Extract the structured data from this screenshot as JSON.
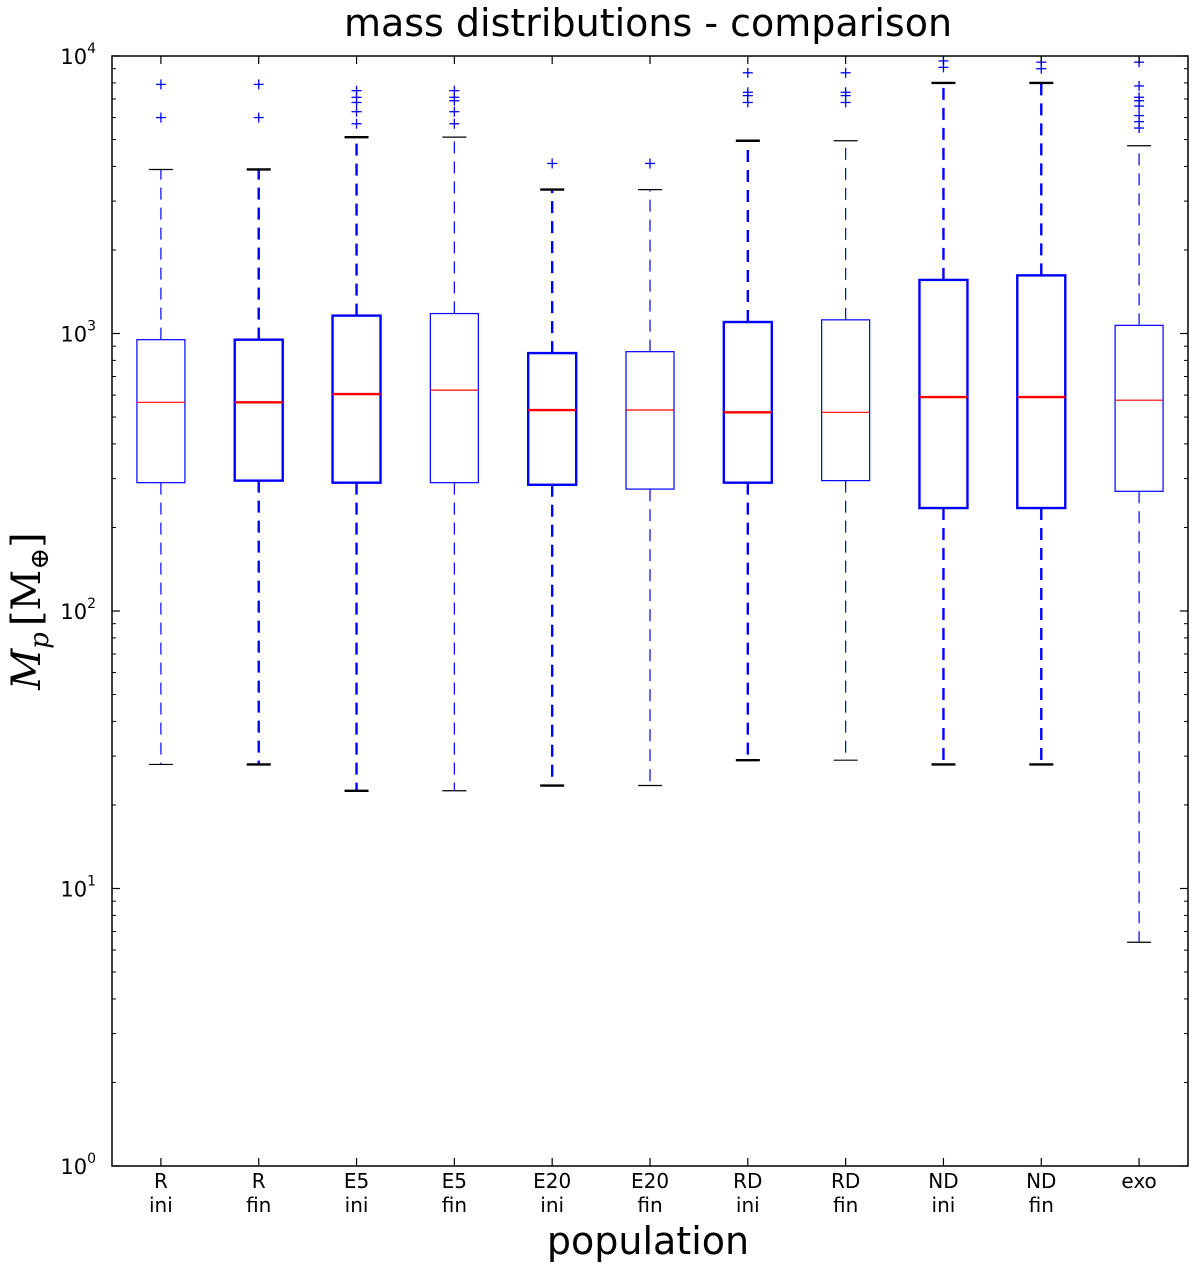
{
  "chart_data": {
    "type": "box",
    "title": "mass distributions - comparison",
    "xlabel": "population",
    "ylabel": "M_p [M_⊕]",
    "ylabel_main": "M",
    "ylabel_sub": "p",
    "ylabel_unit": "[M",
    "ylabel_unit_sub": "⊕",
    "ylabel_close": "]",
    "yscale": "log",
    "ylim": [
      1,
      10000
    ],
    "yticks": [
      {
        "value": 1,
        "base": "10",
        "exp": "0"
      },
      {
        "value": 10,
        "base": "10",
        "exp": "1"
      },
      {
        "value": 100,
        "base": "10",
        "exp": "2"
      },
      {
        "value": 1000,
        "base": "10",
        "exp": "3"
      },
      {
        "value": 10000,
        "base": "10",
        "exp": "4"
      }
    ],
    "grid": false,
    "colors": {
      "box": "#0000ff",
      "median": "#ff0000",
      "cap": "#000000",
      "flier": "#0000ff"
    },
    "categories": [
      {
        "line1": "R",
        "line2": "ini"
      },
      {
        "line1": "R",
        "line2": "fin"
      },
      {
        "line1": "E5",
        "line2": "ini"
      },
      {
        "line1": "E5",
        "line2": "fin"
      },
      {
        "line1": "E20",
        "line2": "ini"
      },
      {
        "line1": "E20",
        "line2": "fin"
      },
      {
        "line1": "RD",
        "line2": "ini"
      },
      {
        "line1": "RD",
        "line2": "fin"
      },
      {
        "line1": "ND",
        "line2": "ini"
      },
      {
        "line1": "ND",
        "line2": "fin"
      },
      {
        "line1": "exo",
        "line2": ""
      }
    ],
    "boxes": [
      {
        "whislo": 28,
        "q1": 290,
        "med": 565,
        "q3": 950,
        "whishi": 3900,
        "fliers": [
          6000,
          7900
        ],
        "bold": false
      },
      {
        "whislo": 28,
        "q1": 295,
        "med": 565,
        "q3": 950,
        "whishi": 3900,
        "fliers": [
          6000,
          7900
        ],
        "bold": true
      },
      {
        "whislo": 22.5,
        "q1": 290,
        "med": 605,
        "q3": 1160,
        "whishi": 5100,
        "fliers": [
          5700,
          6300,
          6800,
          7100,
          7500
        ],
        "bold": true
      },
      {
        "whislo": 22.5,
        "q1": 290,
        "med": 625,
        "q3": 1180,
        "whishi": 5100,
        "fliers": [
          5700,
          6300,
          6900,
          7100,
          7500
        ],
        "bold": false
      },
      {
        "whislo": 23.5,
        "q1": 285,
        "med": 530,
        "q3": 850,
        "whishi": 3300,
        "fliers": [
          4100
        ],
        "bold": true
      },
      {
        "whislo": 23.5,
        "q1": 275,
        "med": 530,
        "q3": 860,
        "whishi": 3300,
        "fliers": [
          4100
        ],
        "bold": false
      },
      {
        "whislo": 29,
        "q1": 290,
        "med": 520,
        "q3": 1100,
        "whishi": 4950,
        "fliers": [
          6800,
          7200,
          7400,
          8700
        ],
        "bold": true
      },
      {
        "whislo": 29,
        "q1": 295,
        "med": 520,
        "q3": 1120,
        "whishi": 4950,
        "fliers": [
          6800,
          7200,
          7400,
          8700
        ],
        "bold": false
      },
      {
        "whislo": 28,
        "q1": 235,
        "med": 590,
        "q3": 1560,
        "whishi": 8000,
        "fliers": [
          9100,
          9600
        ],
        "bold": true
      },
      {
        "whislo": 28,
        "q1": 235,
        "med": 590,
        "q3": 1620,
        "whishi": 8000,
        "fliers": [
          9000,
          9500
        ],
        "bold": true
      },
      {
        "whislo": 6.4,
        "q1": 270,
        "med": 575,
        "q3": 1070,
        "whishi": 4750,
        "fliers": [
          5500,
          5800,
          6100,
          6600,
          6900,
          7100,
          7800,
          9500
        ],
        "bold": false
      }
    ]
  }
}
